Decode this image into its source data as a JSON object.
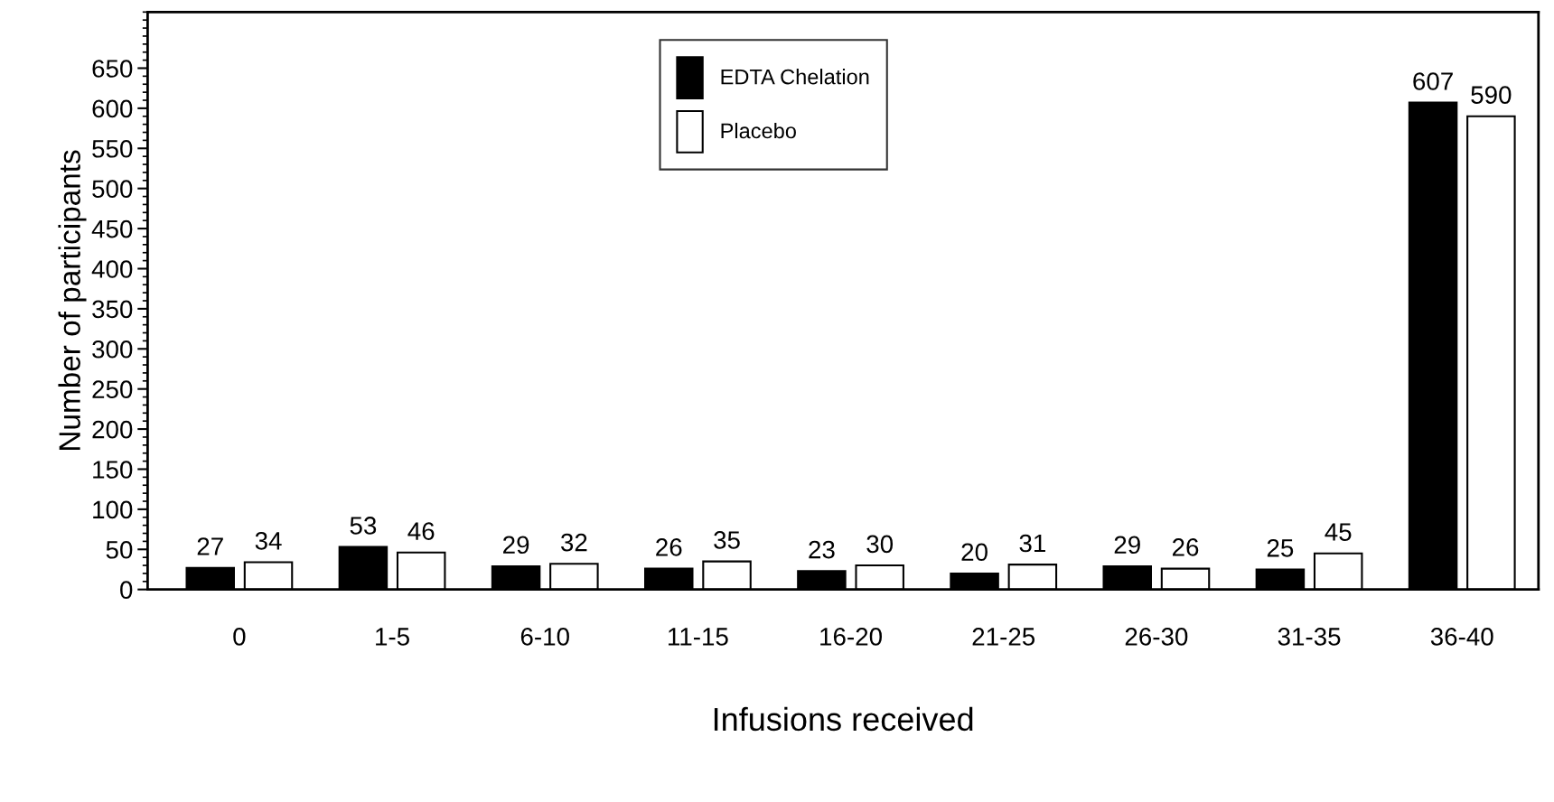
{
  "chart_data": {
    "type": "bar",
    "xlabel": "Infusions received",
    "ylabel": "Number of participants",
    "categories": [
      "0",
      "1-5",
      "6-10",
      "11-15",
      "16-20",
      "21-25",
      "26-30",
      "31-35",
      "36-40"
    ],
    "series": [
      {
        "name": "EDTA Chelation",
        "color": "#000000",
        "values": [
          27,
          53,
          29,
          26,
          23,
          20,
          29,
          25,
          607
        ]
      },
      {
        "name": "Placebo",
        "color": "#ffffff",
        "values": [
          34,
          46,
          32,
          35,
          30,
          31,
          26,
          45,
          590
        ]
      }
    ],
    "ylim": [
      0,
      720
    ],
    "yticks": [
      0,
      50,
      100,
      150,
      200,
      250,
      300,
      350,
      400,
      450,
      500,
      550,
      600,
      650
    ],
    "data_labels": true,
    "legend": "top",
    "grid": false
  }
}
